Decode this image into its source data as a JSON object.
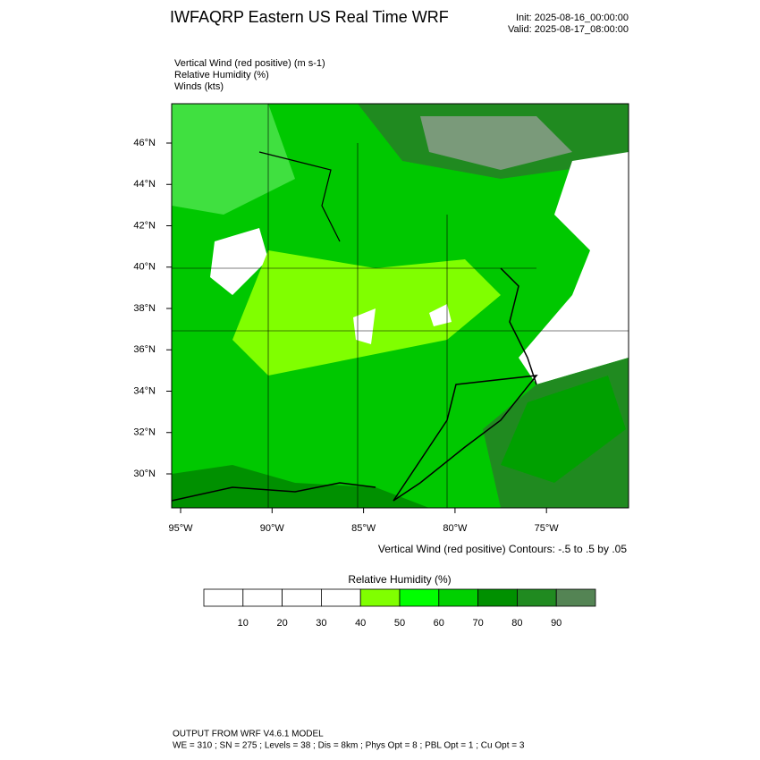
{
  "header": {
    "title": "IWFAQRP Eastern US Real Time WRF",
    "init": "Init: 2025-08-16_00:00:00",
    "valid": "Valid: 2025-08-17_08:00:00"
  },
  "fields": [
    "Vertical Wind (red positive)   (m s-1)",
    "Relative Humidity   (%)",
    "Winds   (kts)"
  ],
  "map": {
    "lat_labels": [
      "46°N",
      "44°N",
      "42°N",
      "40°N",
      "38°N",
      "36°N",
      "34°N",
      "32°N",
      "30°N"
    ],
    "lon_labels": [
      "95°W",
      "90°W",
      "85°W",
      "80°W",
      "75°W"
    ],
    "contour_note": "Vertical Wind (red positive) Contours: -.5 to .5 by .05"
  },
  "colorbar": {
    "title": "Relative Humidity  (%)",
    "labels": [
      "10",
      "20",
      "30",
      "40",
      "50",
      "60",
      "70",
      "80",
      "90"
    ],
    "colors": [
      "#ffffff",
      "#ffffff",
      "#ffffff",
      "#ffffff",
      "#80ff00",
      "#00ff00",
      "#00d000",
      "#009000",
      "#208a20",
      "#548454"
    ]
  },
  "footer": {
    "line1": "OUTPUT FROM WRF V4.6.1 MODEL",
    "line2": "WE = 310 ; SN = 275 ; Levels = 38 ; Dis = 8km ; Phys Opt = 8 ; PBL Opt = 1 ; Cu Opt = 3"
  }
}
